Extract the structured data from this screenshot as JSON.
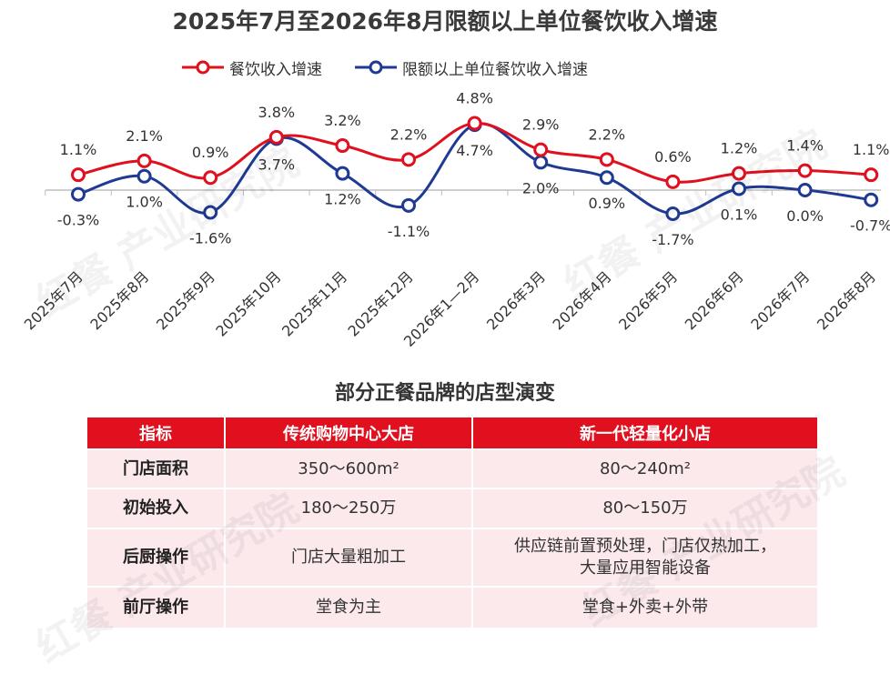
{
  "chart_data": {
    "type": "line",
    "title": "2025年7月至2026年8月限额以上单位餐饮收入增速",
    "categories": [
      "2025年7月",
      "2025年8月",
      "2025年9月",
      "2025年10月",
      "2025年11月",
      "2025年12月",
      "2026年1—2月",
      "2026年3月",
      "2026年4月",
      "2026年5月",
      "2026年6月",
      "2026年7月",
      "2026年8月"
    ],
    "series": [
      {
        "name": "餐饮收入增速",
        "color": "#e0101e",
        "values": [
          1.1,
          2.1,
          0.9,
          3.8,
          3.2,
          2.2,
          4.8,
          2.9,
          2.2,
          0.6,
          1.2,
          1.4,
          1.1
        ],
        "labels": [
          "1.1%",
          "2.1%",
          "0.9%",
          "3.8%",
          "3.2%",
          "2.2%",
          "4.8%",
          "2.9%",
          "2.2%",
          "0.6%",
          "1.2%",
          "1.4%",
          "1.1%"
        ]
      },
      {
        "name": "限额以上单位餐饮收入增速",
        "color": "#1f3a93",
        "values": [
          -0.3,
          1.0,
          -1.6,
          3.7,
          1.2,
          -1.1,
          4.7,
          2.0,
          0.9,
          -1.7,
          0.1,
          0.0,
          -0.7
        ],
        "labels": [
          "-0.3%",
          "1.0%",
          "-1.6%",
          "3.7%",
          "1.2%",
          "-1.1%",
          "4.7%",
          "2.0%",
          "0.9%",
          "-1.7%",
          "0.1%",
          "0.0%",
          "-0.7%"
        ]
      }
    ],
    "legend_position": "top-center",
    "grid": false
  },
  "table": {
    "title": "部分正餐品牌的店型演变",
    "headers": [
      "指标",
      "传统购物中心大店",
      "新一代轻量化小店"
    ],
    "rows": [
      [
        "门店面积",
        "350～600m²",
        "80～240m²"
      ],
      [
        "初始投入",
        "180～250万",
        "80～150万"
      ],
      [
        "后厨操作",
        "门店大量粗加工",
        "供应链前置预处理，门店仅热加工，大量应用智能设备"
      ],
      [
        "前厅操作",
        "堂食为主",
        "堂食+外卖+外带"
      ]
    ]
  },
  "watermark": "红餐 产业研究院"
}
